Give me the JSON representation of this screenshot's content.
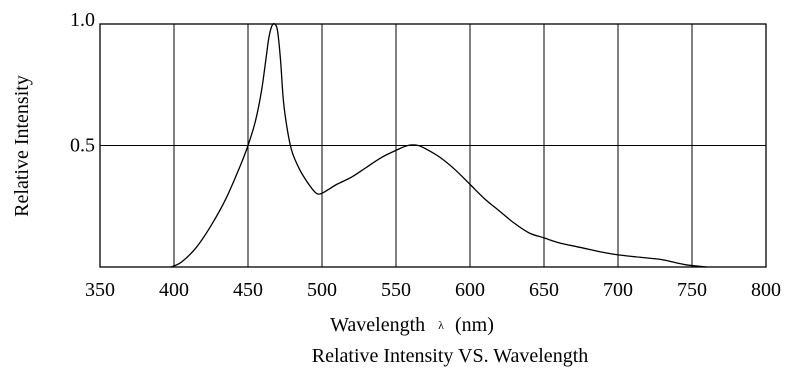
{
  "chart_data": {
    "type": "line",
    "title": "Relative Intensity VS. Wavelength",
    "xlabel": "Wavelength",
    "xlabel_symbol": "λ",
    "xlabel_unit": "(nm)",
    "ylabel": "Relative Intensity",
    "xlim": [
      350,
      800
    ],
    "ylim": [
      0,
      1.0
    ],
    "grid": true,
    "x_ticks": [
      350,
      400,
      450,
      500,
      550,
      600,
      650,
      700,
      750,
      800
    ],
    "x_tick_labels": [
      "350",
      "400",
      "450",
      "500",
      "550",
      "600",
      "650",
      "700",
      "750",
      "800"
    ],
    "y_ticks": [
      0.5,
      1.0
    ],
    "y_tick_labels": [
      "0.5",
      "1.0"
    ],
    "series": [
      {
        "x": [
          398,
          405,
          415,
          425,
          435,
          445,
          450,
          455,
          459,
          462,
          464,
          466,
          468,
          470,
          472,
          474,
          477,
          480,
          485,
          490,
          495,
          498,
          502,
          510,
          520,
          530,
          540,
          550,
          558,
          565,
          572,
          580,
          590,
          600,
          610,
          620,
          630,
          640,
          650,
          660,
          675,
          690,
          700,
          715,
          730,
          745,
          760
        ],
        "y": [
          0.0,
          0.02,
          0.08,
          0.17,
          0.28,
          0.42,
          0.5,
          0.6,
          0.72,
          0.85,
          0.94,
          0.99,
          1.0,
          0.97,
          0.85,
          0.68,
          0.55,
          0.47,
          0.4,
          0.35,
          0.31,
          0.3,
          0.31,
          0.34,
          0.37,
          0.41,
          0.45,
          0.48,
          0.5,
          0.5,
          0.48,
          0.45,
          0.4,
          0.34,
          0.28,
          0.23,
          0.18,
          0.14,
          0.12,
          0.1,
          0.08,
          0.06,
          0.05,
          0.04,
          0.03,
          0.01,
          0.0
        ]
      }
    ]
  }
}
